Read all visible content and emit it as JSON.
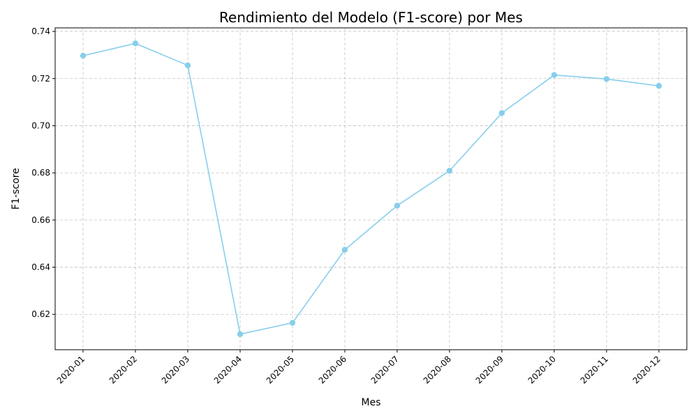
{
  "chart_data": {
    "type": "line",
    "title": "Rendimiento del Modelo (F1-score) por Mes",
    "xlabel": "Mes",
    "ylabel": "F1-score",
    "categories": [
      "2020-01",
      "2020-02",
      "2020-03",
      "2020-04",
      "2020-05",
      "2020-06",
      "2020-07",
      "2020-08",
      "2020-09",
      "2020-10",
      "2020-11",
      "2020-12"
    ],
    "series": [
      {
        "values": [
          0.7297,
          0.7349,
          0.7256,
          0.6116,
          0.6164,
          0.6474,
          0.6661,
          0.6809,
          0.7054,
          0.7215,
          0.7198,
          0.7169
        ],
        "color": "#87CEEB",
        "marker": "circle"
      }
    ],
    "ylim": [
      0.605,
      0.7415
    ],
    "yticks": [
      0.62,
      0.64,
      0.66,
      0.68,
      0.7,
      0.72,
      0.74
    ],
    "ytick_labels": [
      "0.62",
      "0.64",
      "0.66",
      "0.68",
      "0.70",
      "0.72",
      "0.74"
    ],
    "grid": true,
    "grid_style": "dashed"
  }
}
